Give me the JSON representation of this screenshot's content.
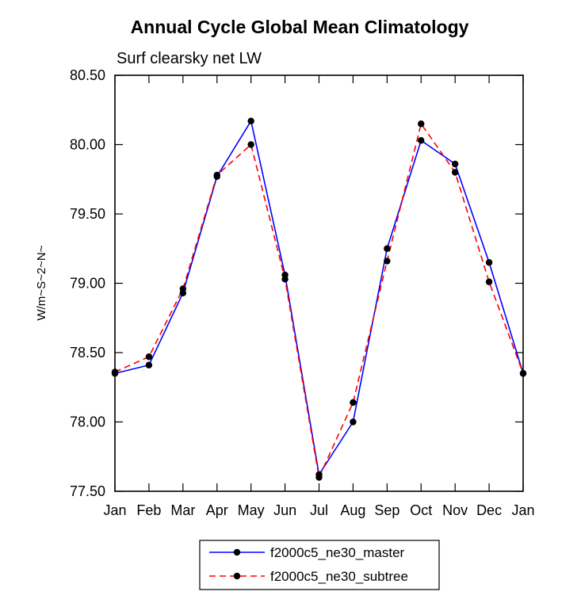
{
  "page": {
    "background": "#ffffff"
  },
  "chart_data": {
    "type": "line",
    "title": "Annual Cycle Global Mean Climatology",
    "subtitle": "Surf clearsky net LW",
    "ylabel": "W/m~S~2~N~",
    "xlabel": "",
    "categories": [
      "Jan",
      "Feb",
      "Mar",
      "Apr",
      "May",
      "Jun",
      "Jul",
      "Aug",
      "Sep",
      "Oct",
      "Nov",
      "Dec",
      "Jan"
    ],
    "ylim": [
      77.5,
      80.5
    ],
    "yticks": [
      77.5,
      78.0,
      78.5,
      79.0,
      79.5,
      80.0,
      80.5
    ],
    "grid": false,
    "legend_position": "bottom",
    "marker_color": "#000000",
    "series": [
      {
        "name": "f2000c5_ne30_master",
        "color": "#0000ff",
        "style": "solid",
        "dash": "",
        "values": [
          78.35,
          78.41,
          78.93,
          79.77,
          80.17,
          79.06,
          77.62,
          78.0,
          79.25,
          80.03,
          79.86,
          79.15,
          78.35
        ]
      },
      {
        "name": "f2000c5_ne30_subtree",
        "color": "#ff0000",
        "style": "dashed",
        "dash": "8,5",
        "values": [
          78.36,
          78.47,
          78.96,
          79.78,
          80.0,
          79.03,
          77.6,
          78.14,
          79.16,
          80.15,
          79.8,
          79.01,
          78.35
        ]
      }
    ]
  }
}
